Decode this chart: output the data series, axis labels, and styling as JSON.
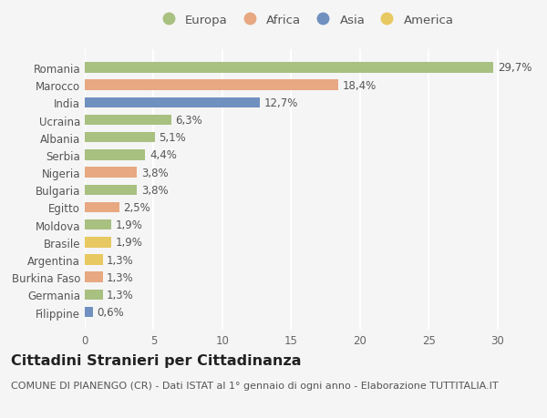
{
  "categories": [
    "Filippine",
    "Germania",
    "Burkina Faso",
    "Argentina",
    "Brasile",
    "Moldova",
    "Egitto",
    "Bulgaria",
    "Nigeria",
    "Serbia",
    "Albania",
    "Ucraina",
    "India",
    "Marocco",
    "Romania"
  ],
  "values": [
    0.6,
    1.3,
    1.3,
    1.3,
    1.9,
    1.9,
    2.5,
    3.8,
    3.8,
    4.4,
    5.1,
    6.3,
    12.7,
    18.4,
    29.7
  ],
  "labels": [
    "0,6%",
    "1,3%",
    "1,3%",
    "1,3%",
    "1,9%",
    "1,9%",
    "2,5%",
    "3,8%",
    "3,8%",
    "4,4%",
    "5,1%",
    "6,3%",
    "12,7%",
    "18,4%",
    "29,7%"
  ],
  "continents": [
    "Asia",
    "Europa",
    "Africa",
    "America",
    "America",
    "Europa",
    "Africa",
    "Europa",
    "Africa",
    "Europa",
    "Europa",
    "Europa",
    "Asia",
    "Africa",
    "Europa"
  ],
  "continent_colors": {
    "Europa": "#a8c080",
    "Africa": "#e8a882",
    "Asia": "#7090c0",
    "America": "#e8c860"
  },
  "legend_order": [
    "Europa",
    "Africa",
    "Asia",
    "America"
  ],
  "xlim": [
    0,
    32
  ],
  "xticks": [
    0,
    5,
    10,
    15,
    20,
    25,
    30
  ],
  "bg_color": "#f5f5f5",
  "grid_color": "#ffffff",
  "title": "Cittadini Stranieri per Cittadinanza",
  "subtitle": "COMUNE DI PIANENGO (CR) - Dati ISTAT al 1° gennaio di ogni anno - Elaborazione TUTTITALIA.IT",
  "bar_height": 0.6,
  "label_fontsize": 8.5,
  "tick_fontsize": 8.5,
  "title_fontsize": 11.5,
  "subtitle_fontsize": 8
}
